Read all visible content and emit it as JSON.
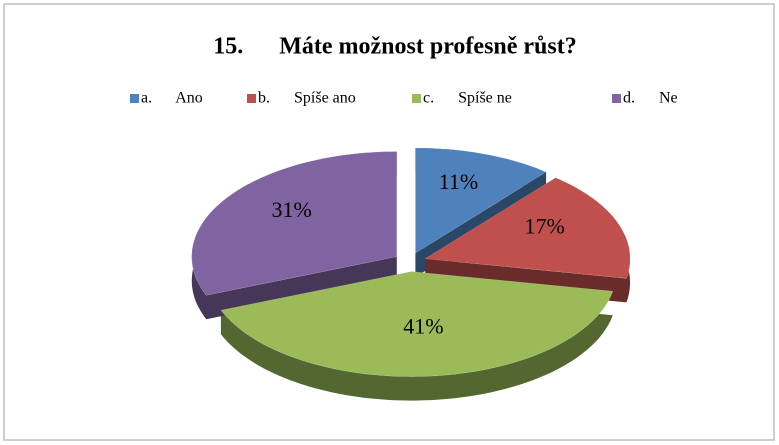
{
  "chart_data": {
    "type": "pie",
    "title": "15.      Máte možnost profesně růst?",
    "categories": [
      "a.      Ano",
      "b.      Spíše ano",
      "c.      Spíše ne",
      "d.      Ne"
    ],
    "values": [
      11,
      17,
      41,
      31
    ],
    "value_labels": [
      "11%",
      "17%",
      "41%",
      "31%"
    ],
    "colors": [
      "#4f81bd",
      "#c0504d",
      "#9bbb59",
      "#8064a2"
    ],
    "legend": "top"
  }
}
